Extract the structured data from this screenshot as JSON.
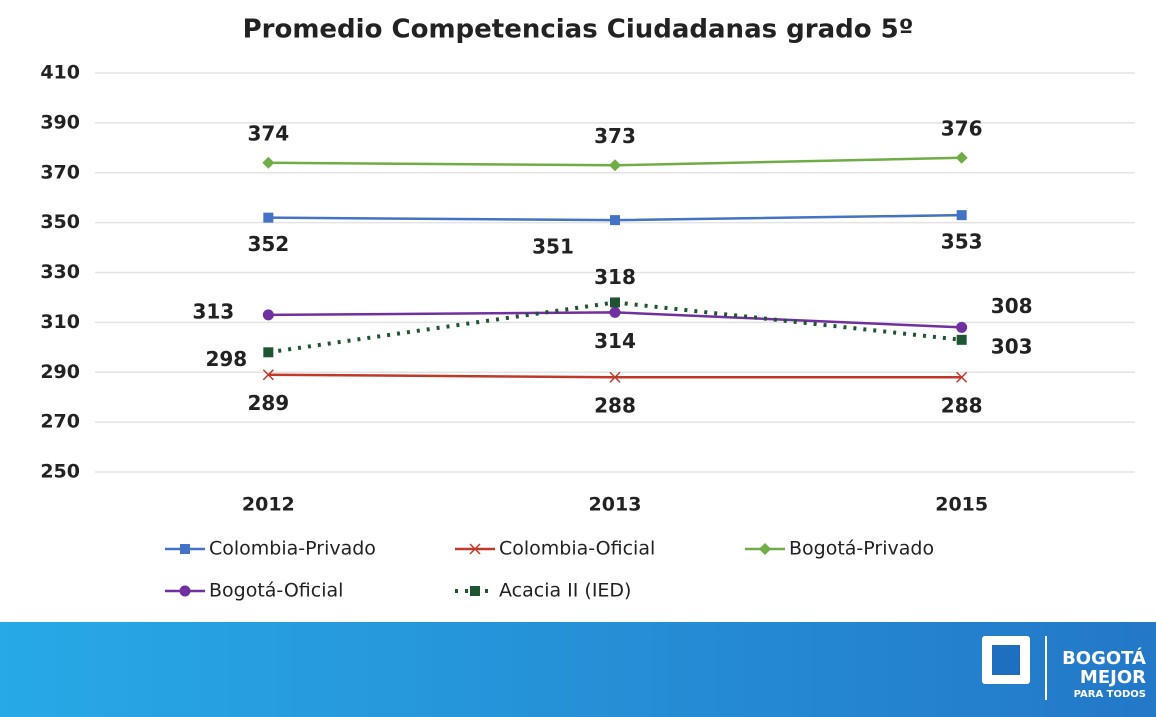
{
  "chart_data": {
    "type": "line",
    "title": "Promedio Competencias Ciudadanas grado 5º",
    "categories": [
      "2012",
      "2013",
      "2015"
    ],
    "series": [
      {
        "name": "Colombia-Privado",
        "color": "#4472c4",
        "marker": "square",
        "values": [
          352,
          351,
          353
        ]
      },
      {
        "name": "Colombia-Oficial",
        "color": "#c0392b",
        "marker": "x",
        "values": [
          289,
          288,
          288
        ]
      },
      {
        "name": "Bogotá-Privado",
        "color": "#70ad47",
        "marker": "diamond",
        "values": [
          374,
          373,
          376
        ]
      },
      {
        "name": "Bogotá-Oficial",
        "color": "#7030a0",
        "marker": "circle",
        "values": [
          313,
          314,
          308
        ]
      },
      {
        "name": "Acacia II (IED)",
        "color": "#1e5631",
        "marker": "square",
        "dash": "dotted",
        "values": [
          298,
          318,
          303
        ]
      }
    ],
    "ylim": [
      250,
      410
    ],
    "yticks": [
      250,
      270,
      290,
      310,
      330,
      350,
      370,
      390,
      410
    ],
    "grid": true,
    "legend": "bottom"
  },
  "footer": {
    "logo": [
      "BOGOTÁ",
      "MEJOR",
      "PARA TODOS"
    ]
  }
}
